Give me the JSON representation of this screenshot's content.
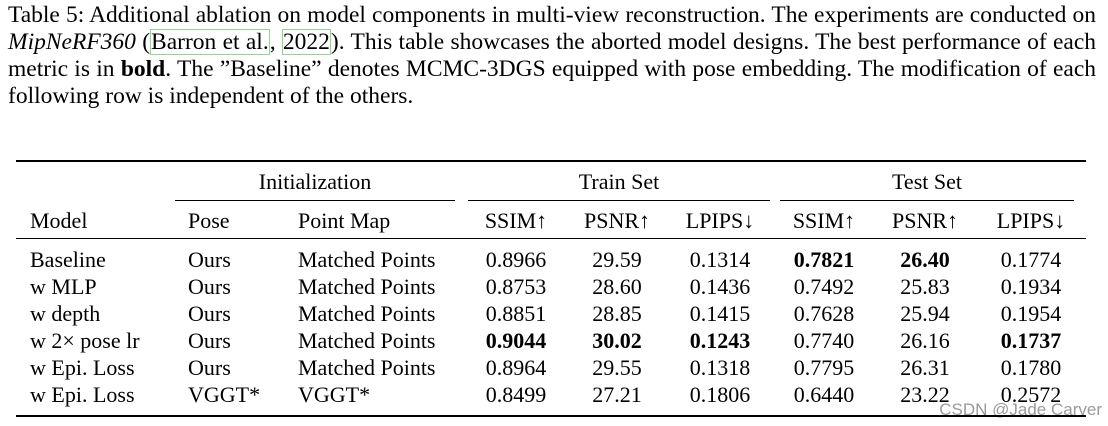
{
  "caption": {
    "parts": [
      {
        "text": "Table 5: Additional ablation on model components in multi-view reconstruction. The experiments are conducted on ",
        "style": "plain"
      },
      {
        "text": "MipNeRF360",
        "style": "italic"
      },
      {
        "text": " (",
        "style": "plain"
      },
      {
        "text": "Barron et al.",
        "style": "cite"
      },
      {
        "text": ", ",
        "style": "plain"
      },
      {
        "text": "2022",
        "style": "cite"
      },
      {
        "text": "). This table showcases the aborted model designs. The best performance of each metric is in ",
        "style": "plain"
      },
      {
        "text": "bold",
        "style": "bold"
      },
      {
        "text": ". The ”Baseline” denotes MCMC-3DGS equipped with pose embedding. The modification of each following row is independent of the others.",
        "style": "plain"
      }
    ]
  },
  "table": {
    "groups": [
      "Initialization",
      "Train Set",
      "Test Set"
    ],
    "columns": [
      "Model",
      "Pose",
      "Point Map",
      "SSIM↑",
      "PSNR↑",
      "LPIPS↓",
      "SSIM↑",
      "PSNR↑",
      "LPIPS↓"
    ],
    "rows": [
      [
        "Baseline",
        "Ours",
        "Matched Points",
        "0.8966",
        "29.59",
        "0.1314",
        "0.7821",
        "26.40",
        "0.1774"
      ],
      [
        "w MLP",
        "Ours",
        "Matched Points",
        "0.8753",
        "28.60",
        "0.1436",
        "0.7492",
        "25.83",
        "0.1934"
      ],
      [
        "w depth",
        "Ours",
        "Matched Points",
        "0.8851",
        "28.85",
        "0.1415",
        "0.7628",
        "25.94",
        "0.1954"
      ],
      [
        "w 2× pose lr",
        "Ours",
        "Matched Points",
        "0.9044",
        "30.02",
        "0.1243",
        "0.7740",
        "26.16",
        "0.1737"
      ],
      [
        "w Epi. Loss",
        "Ours",
        "Matched Points",
        "0.8964",
        "29.55",
        "0.1318",
        "0.7795",
        "26.31",
        "0.1780"
      ],
      [
        "w Epi. Loss",
        "VGGT*",
        "VGGT*",
        "0.8499",
        "27.21",
        "0.1806",
        "0.6440",
        "23.22",
        "0.2572"
      ]
    ],
    "bold_cells": [
      [
        0,
        6
      ],
      [
        0,
        7
      ],
      [
        3,
        3
      ],
      [
        3,
        4
      ],
      [
        3,
        5
      ],
      [
        3,
        8
      ]
    ]
  },
  "watermark": "CSDN @Jade Carver"
}
